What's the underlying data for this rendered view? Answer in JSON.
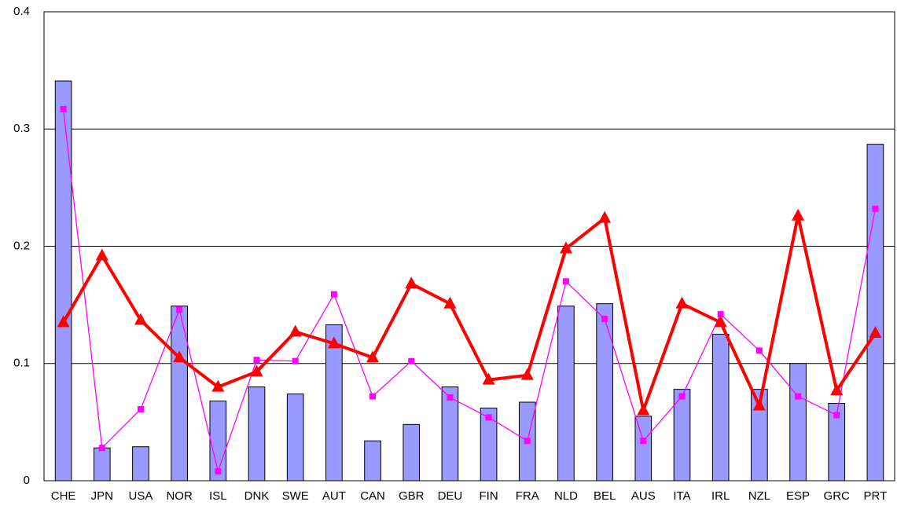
{
  "chart_data": {
    "type": "bar",
    "categories": [
      "CHE",
      "JPN",
      "USA",
      "NOR",
      "ISL",
      "DNK",
      "SWE",
      "AUT",
      "CAN",
      "GBR",
      "DEU",
      "FIN",
      "FRA",
      "NLD",
      "BEL",
      "AUS",
      "ITA",
      "IRL",
      "NZL",
      "ESP",
      "GRC",
      "PRT"
    ],
    "series": [
      {
        "type": "bar",
        "color": "#9999ff",
        "values": [
          0.341,
          0.028,
          0.029,
          0.149,
          0.068,
          0.08,
          0.074,
          0.133,
          0.034,
          0.048,
          0.08,
          0.062,
          0.067,
          0.149,
          0.151,
          0.055,
          0.078,
          0.125,
          0.078,
          0.1,
          0.066,
          0.287
        ]
      },
      {
        "type": "line",
        "marker": "square",
        "color": "#ff00ff",
        "values": [
          0.317,
          0.028,
          0.061,
          0.146,
          0.008,
          0.103,
          0.102,
          0.159,
          0.072,
          0.102,
          0.071,
          0.054,
          0.034,
          0.17,
          0.138,
          0.034,
          0.072,
          0.142,
          0.111,
          0.072,
          0.056,
          0.232
        ]
      },
      {
        "type": "line",
        "marker": "triangle",
        "color": "#ff0000",
        "values": [
          0.135,
          0.192,
          0.137,
          0.105,
          0.08,
          0.093,
          0.127,
          0.117,
          0.105,
          0.168,
          0.151,
          0.086,
          0.09,
          0.198,
          0.224,
          0.06,
          0.151,
          0.135,
          0.064,
          0.226,
          0.077,
          0.126
        ]
      }
    ],
    "ylim": [
      0,
      0.4
    ],
    "yticks": [
      0,
      0.1,
      0.2,
      0.3,
      0.4
    ],
    "grid": true
  }
}
